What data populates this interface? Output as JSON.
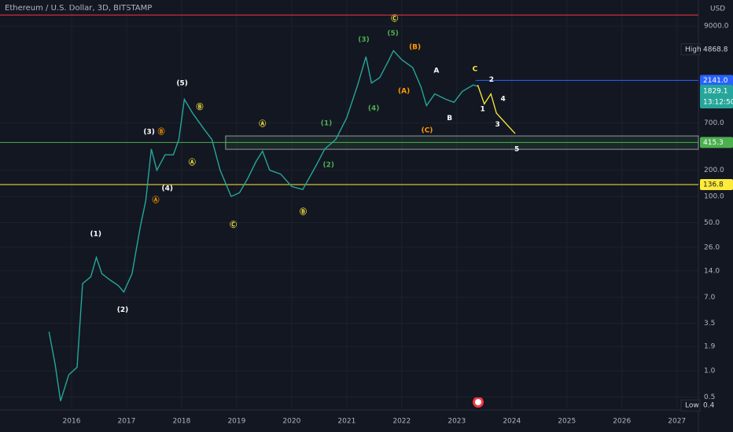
{
  "chart_data": {
    "type": "line",
    "title": "Ethereum / U.S. Dollar, 3D, BITSTAMP",
    "currency": "USD",
    "log_scale": true,
    "grid": true,
    "color": "#26a69a",
    "x": [
      2015.59,
      2015.7,
      2015.8,
      2015.95,
      2016.1,
      2016.2,
      2016.35,
      2016.45,
      2016.55,
      2016.7,
      2016.85,
      2016.95,
      2017.1,
      2017.25,
      2017.35,
      2017.45,
      2017.55,
      2017.7,
      2017.85,
      2017.95,
      2018.05,
      2018.2,
      2018.4,
      2018.55,
      2018.7,
      2018.9,
      2019.05,
      2019.2,
      2019.35,
      2019.47,
      2019.6,
      2019.8,
      2020.0,
      2020.2,
      2020.45,
      2020.6,
      2020.8,
      2021.0,
      2021.2,
      2021.35,
      2021.45,
      2021.6,
      2021.75,
      2021.85,
      2022.0,
      2022.2,
      2022.35,
      2022.45,
      2022.6,
      2022.8,
      2022.95,
      2023.1,
      2023.3,
      2023.38
    ],
    "values": [
      2.8,
      1.2,
      0.45,
      0.9,
      1.1,
      10,
      12,
      20,
      13,
      11,
      9.5,
      8,
      13,
      45,
      90,
      350,
      200,
      300,
      300,
      450,
      1300,
      900,
      600,
      450,
      200,
      100,
      110,
      160,
      250,
      330,
      200,
      180,
      130,
      120,
      230,
      350,
      450,
      800,
      1900,
      4000,
      2000,
      2300,
      3500,
      4700,
      3700,
      3000,
      1800,
      1100,
      1500,
      1300,
      1200,
      1600,
      1900,
      1829.1
    ],
    "projection": {
      "color": "#ffeb3b",
      "x": [
        2023.38,
        2023.5,
        2023.62,
        2023.72,
        2024.06
      ],
      "values": [
        1900,
        1150,
        1500,
        900,
        525
      ]
    },
    "xlim": [
      2014.7,
      2027.39
    ],
    "ylim": [
      0.37,
      17900
    ],
    "xticks": [
      2016,
      2017,
      2018,
      2019,
      2020,
      2021,
      2022,
      2023,
      2024,
      2025,
      2026,
      2027
    ],
    "yticks": [
      0.5,
      {
        "value": 1,
        "label": "1.0"
      },
      1.9,
      3.5,
      {
        "value": 7,
        "label": "7.0"
      },
      {
        "value": 14,
        "label": "14.0"
      },
      {
        "value": 26,
        "label": "26.0"
      },
      {
        "value": 50,
        "label": "50.0"
      },
      {
        "value": 100,
        "label": "100.0"
      },
      {
        "value": 200,
        "label": "200.0"
      },
      {
        "value": 700,
        "label": "700.0"
      },
      {
        "value": 9000,
        "label": "9000.0"
      }
    ],
    "levels": [
      {
        "value": 12040,
        "color": "#f23645",
        "x": 2014.7
      },
      {
        "value": 2141,
        "label": "2141.0",
        "color": "#2962ff",
        "x": 2023.34
      },
      {
        "value": 415.3,
        "label": "415.3",
        "color": "#4caf50",
        "x": 2014.7
      },
      {
        "value": 136.8,
        "label": "136.8",
        "color": "#ffeb3b",
        "x": 2014.7
      }
    ],
    "zone": {
      "low": 347,
      "high": 494,
      "x": 2018.8,
      "color": "#4caf50"
    },
    "high": {
      "label": "High",
      "value": 4868.8,
      "value_label": "4868.8"
    },
    "low": {
      "label": "Low",
      "value": 0.4
    },
    "last_price": {
      "value": 1829.1,
      "time": "13:12:50",
      "color": "#26a69a"
    },
    "annotations": [
      {
        "text": "(1)",
        "x": 2016.44,
        "y": 37,
        "color": "#ffffff"
      },
      {
        "text": "(2)",
        "x": 2016.93,
        "y": 5.0,
        "color": "#ffffff"
      },
      {
        "text": "(3)",
        "x": 2017.41,
        "y": 550,
        "color": "#ffffff"
      },
      {
        "text": "(4)",
        "x": 2017.74,
        "y": 123,
        "color": "#ffffff"
      },
      {
        "text": "(5)",
        "x": 2018.01,
        "y": 1980,
        "color": "#ffffff"
      },
      {
        "text": "Ⓐ",
        "x": 2017.53,
        "y": 90,
        "color": "#ff9800"
      },
      {
        "text": "Ⓑ",
        "x": 2017.63,
        "y": 550,
        "color": "#ff9800"
      },
      {
        "text": "Ⓐ",
        "x": 2018.19,
        "y": 244,
        "color": "#ffeb3b"
      },
      {
        "text": "Ⓑ",
        "x": 2018.33,
        "y": 1060,
        "color": "#ffeb3b"
      },
      {
        "text": "Ⓒ",
        "x": 2018.94,
        "y": 47,
        "color": "#ffeb3b"
      },
      {
        "text": "Ⓐ",
        "x": 2019.47,
        "y": 675,
        "color": "#ffeb3b"
      },
      {
        "text": "Ⓑ",
        "x": 2020.21,
        "y": 66,
        "color": "#ffeb3b"
      },
      {
        "text": "(1)",
        "x": 2020.63,
        "y": 688,
        "color": "#4caf50"
      },
      {
        "text": "(2)",
        "x": 2020.67,
        "y": 229,
        "color": "#4caf50"
      },
      {
        "text": "(3)",
        "x": 2021.31,
        "y": 6300,
        "color": "#4caf50"
      },
      {
        "text": "(4)",
        "x": 2021.49,
        "y": 1020,
        "color": "#4caf50"
      },
      {
        "text": "(5)",
        "x": 2021.84,
        "y": 7450,
        "color": "#4caf50"
      },
      {
        "text": "Ⓒ",
        "x": 2021.87,
        "y": 10870,
        "color": "#ffeb3b"
      },
      {
        "text": "(B)",
        "x": 2022.24,
        "y": 5150,
        "color": "#ff9800"
      },
      {
        "text": "(A)",
        "x": 2022.04,
        "y": 1610,
        "color": "#ff9800"
      },
      {
        "text": "(C)",
        "x": 2022.46,
        "y": 570,
        "color": "#ff9800"
      },
      {
        "text": "A",
        "x": 2022.63,
        "y": 2770,
        "color": "#ffffff"
      },
      {
        "text": "B",
        "x": 2022.87,
        "y": 790,
        "color": "#ffffff"
      },
      {
        "text": "C",
        "x": 2023.33,
        "y": 2870,
        "color": "#ffeb3b"
      },
      {
        "text": "1",
        "x": 2023.47,
        "y": 1000,
        "color": "#ffffff"
      },
      {
        "text": "2",
        "x": 2023.63,
        "y": 2180,
        "color": "#ffffff"
      },
      {
        "text": "3",
        "x": 2023.74,
        "y": 665,
        "color": "#ffffff"
      },
      {
        "text": "4",
        "x": 2023.84,
        "y": 1310,
        "color": "#ffffff"
      },
      {
        "text": "5",
        "x": 2024.09,
        "y": 347,
        "color": "#ffffff"
      }
    ]
  }
}
